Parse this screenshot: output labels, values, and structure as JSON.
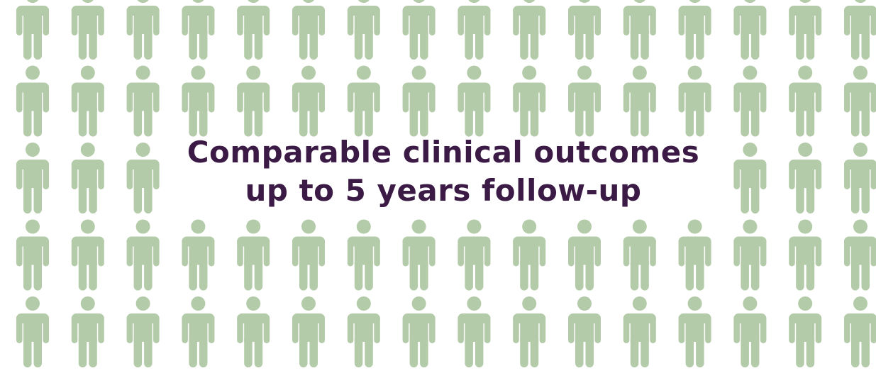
{
  "headline": {
    "line1": "Comparable clinical outcomes",
    "line2": "up to 5 years follow-up"
  },
  "figures": {
    "icon": "person-icon",
    "color": "#b3cba8",
    "rows": 5,
    "columns": 16,
    "hidden_behind_text": {
      "row": 2,
      "from_column": 3,
      "to_column": 12
    }
  },
  "colors": {
    "background": "#ffffff",
    "headline": "#3b1a45"
  }
}
